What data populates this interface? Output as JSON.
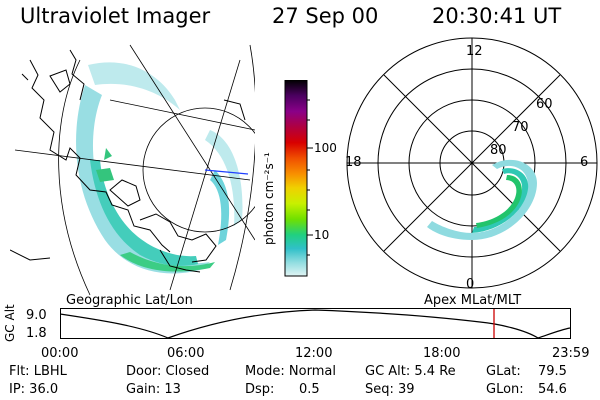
{
  "header": {
    "instrument": "Ultraviolet Imager",
    "date": "27 Sep 00",
    "time": "20:30:41 UT"
  },
  "colorbar": {
    "unit_label": "photon cm⁻²s⁻¹",
    "ticks": [
      "100",
      "10"
    ],
    "colors": [
      "#000000",
      "#4b0060",
      "#8a0088",
      "#b00040",
      "#d80000",
      "#f05000",
      "#f89000",
      "#f0d000",
      "#c8f000",
      "#70e000",
      "#20d080",
      "#30c0c8",
      "#90dde0",
      "#e0f4f4"
    ]
  },
  "geo_panel": {
    "caption": "Geographic Lat/Lon"
  },
  "polar_panel": {
    "caption": "Apex MLat/MLT",
    "mlt_labels": {
      "top": "12",
      "left": "18",
      "right": "6",
      "bottom": "0"
    },
    "lat_labels": [
      "60",
      "70",
      "80"
    ]
  },
  "altitude_strip": {
    "axis_title": "GC Alt",
    "y_ticks": [
      "9.0",
      "1.8"
    ],
    "x_ticks": [
      "00:00",
      "06:00",
      "12:00",
      "18:00",
      "23:59"
    ],
    "marker_time": "20:30",
    "marker_color": "#cc0000"
  },
  "info": {
    "flt": "Flt: LBHL",
    "ip": "IP: 36.0",
    "door": "Door: Closed",
    "gain": "Gain: 13",
    "mode": "Mode: Normal",
    "dsp_label": "Dsp:",
    "dsp_value": "0.5",
    "gc_alt": "GC Alt: 5.4 Re",
    "seq": "Seq: 39",
    "glat_label": "GLat:",
    "glat_value": "79.5",
    "glon_label": "GLon:",
    "glon_value": "54.6"
  }
}
